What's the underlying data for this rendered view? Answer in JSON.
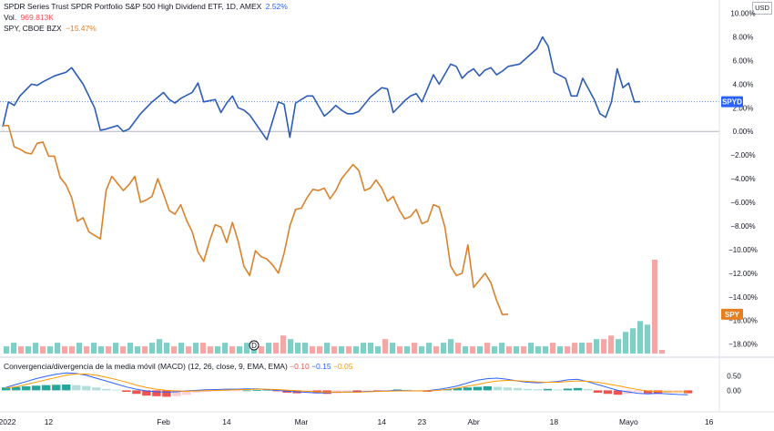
{
  "legend": {
    "line1": {
      "name": "SPDR Series Trust SPDR Portfolio S&P 500 High Dividend ETF, 1D, AMEX",
      "value": "2.52%"
    },
    "line2": {
      "label": "Vol.",
      "value": "969.813K"
    },
    "line3": {
      "name": "SPY, CBOE BZX",
      "value": "−15.47%"
    }
  },
  "currency_button": "USD",
  "colors": {
    "spyd": "#2962ff",
    "spyd_line": "#2b5cb8",
    "spy": "#e67e22",
    "spy_line": "#d9822b",
    "vol_up": "#7fcfc6",
    "vol_down": "#f4a7a5",
    "macd_up_strong": "#26a69a",
    "macd_up_weak": "#b2dfdb",
    "macd_down_strong": "#ef5350",
    "macd_down_weak": "#ffcdd2",
    "macd_line": "#2962ff",
    "signal_line": "#ff9800"
  },
  "event_marker": {
    "label": "D",
    "index": 34
  },
  "macd_legend": {
    "title": "Convergencia/divergencia de la media móvil (MACD) (12, 26, close, 9, EMA, EMA)",
    "hist": "−0.10",
    "macd": "−0.15",
    "signal": "−0.05"
  },
  "chart_data": [
    {
      "type": "line",
      "x_labels": [
        "2022",
        "12",
        "Feb",
        "14",
        "Mar",
        "14",
        "23",
        "Abr",
        "18",
        "Mayo",
        "16"
      ],
      "x_label_index": [
        0,
        8,
        28,
        39,
        52,
        66,
        73,
        82,
        96,
        109,
        123
      ],
      "y_ticks": [
        "10.00%",
        "8.00%",
        "6.00%",
        "4.00%",
        "2.00%",
        "0.00%",
        "−2.00%",
        "−4.00%",
        "−6.00%",
        "−8.00%",
        "−10.00%",
        "−12.00%",
        "−14.00%",
        "−16.00%",
        "−18.00%"
      ],
      "ylim": [
        -18.8,
        10.2
      ],
      "x_count": 125,
      "series": [
        {
          "name": "SPYD",
          "values": [
            0.4,
            2.5,
            2.2,
            3.0,
            4.0,
            3.9,
            4.2,
            4.7,
            5.0,
            5.4,
            4.0,
            2.0,
            0.1,
            0.2,
            0.5,
            0.0,
            0.2,
            1.5,
            2.0,
            2.5,
            3.3,
            2.7,
            2.4,
            2.8,
            3.3,
            4.1,
            2.5,
            2.7,
            1.6,
            2.4,
            3.0,
            2.0,
            1.8,
            1.4,
            0.7,
            -0.7,
            2.5,
            2.3,
            -0.5,
            2.4,
            3.0,
            3.0,
            1.3,
            1.7,
            2.2,
            1.8,
            1.5,
            1.5,
            1.7,
            2.9,
            3.7,
            3.6,
            1.6,
            2.6,
            3.0,
            3.2,
            2.5,
            4.8,
            4.0,
            5.7,
            5.5,
            4.5,
            5.0,
            5.3,
            4.7,
            5.2,
            5.4,
            4.8,
            5.1,
            5.5,
            5.7,
            7.0,
            8.0,
            7.2,
            5.0,
            4.5,
            3.0,
            3.0,
            4.5,
            2.7,
            1.5,
            1.2,
            2.5,
            5.3,
            3.7,
            4.1,
            2.5,
            2.52
          ],
          "x_index": [
            0,
            1,
            2,
            3,
            5,
            6,
            7,
            9,
            11,
            12,
            14,
            16,
            17,
            18,
            20,
            21,
            22,
            24,
            25,
            26,
            28,
            29,
            30,
            31,
            33,
            34,
            35,
            37,
            38,
            39,
            40,
            41,
            42,
            43,
            44,
            46,
            48,
            49,
            50,
            51,
            53,
            54,
            56,
            57,
            58,
            59,
            60,
            61,
            62,
            64,
            66,
            67,
            68,
            70,
            71,
            72,
            73,
            75,
            76,
            78,
            79,
            80,
            81,
            82,
            83,
            84,
            85,
            86,
            87,
            88,
            90,
            93,
            94,
            95,
            96,
            98,
            99,
            100,
            101,
            103,
            104,
            105,
            106,
            107,
            108,
            109,
            110,
            111
          ]
        },
        {
          "name": "SPY",
          "values": [
            0.5,
            0.5,
            -1.3,
            -1.5,
            -1.8,
            -1.9,
            -1.0,
            -0.9,
            -2.1,
            -2.1,
            -3.9,
            -4.5,
            -5.6,
            -7.6,
            -7.3,
            -8.5,
            -8.8,
            -9.1,
            -5.0,
            -3.8,
            -5.0,
            -4.5,
            -3.8,
            -6.0,
            -5.8,
            -5.5,
            -4.0,
            -5.3,
            -6.7,
            -7.0,
            -6.2,
            -7.5,
            -8.5,
            -10.2,
            -11.0,
            -9.3,
            -7.9,
            -8.1,
            -9.4,
            -7.7,
            -9.3,
            -11.4,
            -12.2,
            -10.1,
            -10.6,
            -10.8,
            -11.3,
            -12.0,
            -10.3,
            -8.0,
            -6.6,
            -6.5,
            -5.6,
            -4.9,
            -5.0,
            -4.8,
            -5.7,
            -5.0,
            -4.0,
            -3.4,
            -2.8,
            -3.3,
            -5.0,
            -4.8,
            -4.1,
            -4.8,
            -5.9,
            -5.5,
            -6.6,
            -7.4,
            -7.2,
            -6.6,
            -7.8,
            -7.6,
            -6.2,
            -6.4,
            -8.1,
            -11.4,
            -12.2,
            -12.0,
            -9.6,
            -13.2,
            -12.6,
            -12.0,
            -12.8,
            -14.3,
            -15.5,
            -15.47
          ],
          "x_index": [
            0,
            1,
            2,
            3,
            4,
            5,
            6,
            7,
            8,
            9,
            10,
            11,
            12,
            13,
            14,
            15,
            16,
            17,
            18,
            19,
            21,
            22,
            23,
            24,
            25,
            26,
            27,
            28,
            29,
            30,
            31,
            32,
            33,
            34,
            35,
            36,
            37,
            38,
            39,
            40,
            41,
            42,
            43,
            44,
            45,
            46,
            47,
            48,
            49,
            50,
            51,
            52,
            53,
            54,
            55,
            56,
            57,
            58,
            59,
            60,
            61,
            62,
            63,
            64,
            65,
            66,
            67,
            68,
            69,
            70,
            71,
            72,
            73,
            74,
            75,
            76,
            77,
            78,
            79,
            80,
            81,
            82,
            83,
            84,
            85,
            86,
            87,
            88
          ]
        }
      ],
      "tags": [
        {
          "label": "SPYD",
          "value": 2.52
        },
        {
          "label": "SPY",
          "value": -15.47
        }
      ]
    },
    {
      "type": "bar",
      "name": "Vol.",
      "values": [
        2,
        3,
        2,
        2,
        3,
        2,
        2,
        3,
        2,
        2,
        3,
        2,
        3,
        2,
        2,
        3,
        2,
        3,
        2,
        2,
        3,
        4,
        3,
        2,
        3,
        2,
        3,
        3,
        2,
        2,
        3,
        2,
        2,
        3,
        2,
        2,
        3,
        3,
        5,
        4,
        3,
        3,
        2,
        2,
        3,
        2,
        2,
        2,
        2,
        3,
        3,
        2,
        4,
        3,
        2,
        2,
        3,
        2,
        3,
        2,
        3,
        4,
        3,
        2,
        2,
        2,
        3,
        2,
        3,
        2,
        2,
        2,
        3,
        2,
        2,
        3,
        2,
        2,
        3,
        3,
        3,
        4,
        4,
        5,
        4,
        6,
        7,
        9,
        8,
        26,
        1
      ],
      "up": [
        1,
        1,
        0,
        1,
        1,
        0,
        1,
        1,
        0,
        0,
        1,
        0,
        1,
        1,
        0,
        1,
        0,
        1,
        1,
        0,
        1,
        1,
        1,
        0,
        1,
        0,
        1,
        0,
        0,
        1,
        1,
        0,
        1,
        1,
        1,
        0,
        1,
        0,
        0,
        1,
        1,
        1,
        0,
        0,
        1,
        0,
        1,
        0,
        1,
        1,
        1,
        1,
        0,
        1,
        0,
        1,
        0,
        1,
        1,
        0,
        1,
        1,
        0,
        1,
        0,
        1,
        0,
        1,
        1,
        0,
        1,
        0,
        1,
        1,
        1,
        0,
        1,
        0,
        0,
        1,
        0,
        1,
        0,
        0,
        1,
        1,
        1,
        1,
        1,
        0,
        0
      ]
    },
    {
      "type": "bar",
      "name": "MACD",
      "y_ticks": [
        "0.50",
        "0.00"
      ],
      "ylim": [
        -0.55,
        0.7
      ],
      "hist": [
        0.1,
        0.12,
        0.14,
        0.16,
        0.18,
        0.19,
        0.2,
        0.18,
        0.15,
        0.1,
        0.05,
        0.02,
        -0.05,
        -0.12,
        -0.18,
        -0.2,
        -0.22,
        -0.2,
        -0.15,
        -0.08,
        -0.05,
        -0.03,
        -0.02,
        -0.01,
        0.0,
        0.01,
        0.02,
        -0.03,
        -0.08,
        -0.1,
        -0.08,
        -0.1,
        -0.12,
        -0.1,
        -0.05,
        -0.08,
        -0.03,
        -0.05,
        -0.02,
        0.03,
        0.02,
        -0.03,
        -0.05,
        -0.02,
        0.04,
        0.08,
        0.1,
        0.12,
        0.14,
        0.12,
        0.1,
        0.08,
        0.05,
        0.04,
        0.05,
        0.03,
        0.06,
        0.08,
        0.05,
        -0.08,
        -0.12,
        -0.15,
        -0.12,
        -0.06,
        -0.1,
        -0.12,
        -0.08,
        -0.05,
        -0.1
      ],
      "macd": [
        0.1,
        0.2,
        0.3,
        0.4,
        0.48,
        0.55,
        0.6,
        0.58,
        0.52,
        0.42,
        0.32,
        0.22,
        0.12,
        0.04,
        -0.02,
        -0.05,
        -0.06,
        -0.05,
        -0.02,
        0.0,
        0.02,
        0.03,
        0.04,
        0.04,
        0.05,
        0.05,
        0.03,
        0.0,
        -0.03,
        -0.05,
        -0.07,
        -0.09,
        -0.08,
        -0.06,
        -0.06,
        -0.05,
        -0.04,
        -0.03,
        -0.02,
        0.0,
        -0.01,
        -0.02,
        -0.01,
        0.03,
        0.08,
        0.15,
        0.25,
        0.35,
        0.4,
        0.42,
        0.38,
        0.32,
        0.28,
        0.26,
        0.28,
        0.3,
        0.36,
        0.38,
        0.3,
        0.2,
        0.1,
        0.0,
        -0.05,
        -0.1,
        -0.12,
        -0.1,
        -0.12,
        -0.14,
        -0.15
      ],
      "signal": [
        0.08,
        0.12,
        0.2,
        0.28,
        0.36,
        0.44,
        0.52,
        0.56,
        0.56,
        0.52,
        0.45,
        0.37,
        0.28,
        0.18,
        0.1,
        0.04,
        0.0,
        -0.02,
        -0.03,
        -0.02,
        -0.01,
        0.0,
        0.01,
        0.02,
        0.03,
        0.04,
        0.04,
        0.03,
        0.01,
        -0.01,
        -0.03,
        -0.05,
        -0.06,
        -0.06,
        -0.06,
        -0.06,
        -0.05,
        -0.04,
        -0.03,
        -0.02,
        -0.02,
        -0.02,
        -0.02,
        0.0,
        0.03,
        0.08,
        0.14,
        0.2,
        0.27,
        0.32,
        0.34,
        0.33,
        0.31,
        0.29,
        0.28,
        0.28,
        0.3,
        0.32,
        0.31,
        0.28,
        0.22,
        0.16,
        0.09,
        0.03,
        -0.02,
        -0.04,
        -0.05,
        -0.05,
        -0.05
      ]
    }
  ]
}
